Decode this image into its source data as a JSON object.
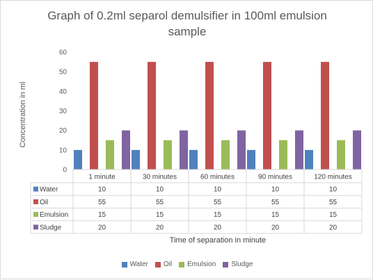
{
  "chart_data": {
    "type": "bar",
    "title": "Graph of 0.2ml separol demulsifier in 100ml emulsion sample",
    "xlabel": "Time of separation in minute",
    "ylabel": "Concentration in ml",
    "ylim": [
      0,
      60
    ],
    "yticks": [
      0,
      10,
      20,
      30,
      40,
      50,
      60
    ],
    "grid": false,
    "legend_position": "bottom",
    "data_table": true,
    "categories": [
      "1 minute",
      "30 minutes",
      "60 minutes",
      "90 minutes",
      "120 minutes"
    ],
    "series": [
      {
        "name": "Water",
        "color": "#4f81bd",
        "values": [
          10,
          10,
          10,
          10,
          10
        ]
      },
      {
        "name": "Oil",
        "color": "#c0504d",
        "values": [
          55,
          55,
          55,
          55,
          55
        ]
      },
      {
        "name": "Emulsion",
        "color": "#9bbb59",
        "values": [
          15,
          15,
          15,
          15,
          15
        ]
      },
      {
        "name": "Sludge",
        "color": "#8064a2",
        "values": [
          20,
          20,
          20,
          20,
          20
        ]
      }
    ]
  }
}
